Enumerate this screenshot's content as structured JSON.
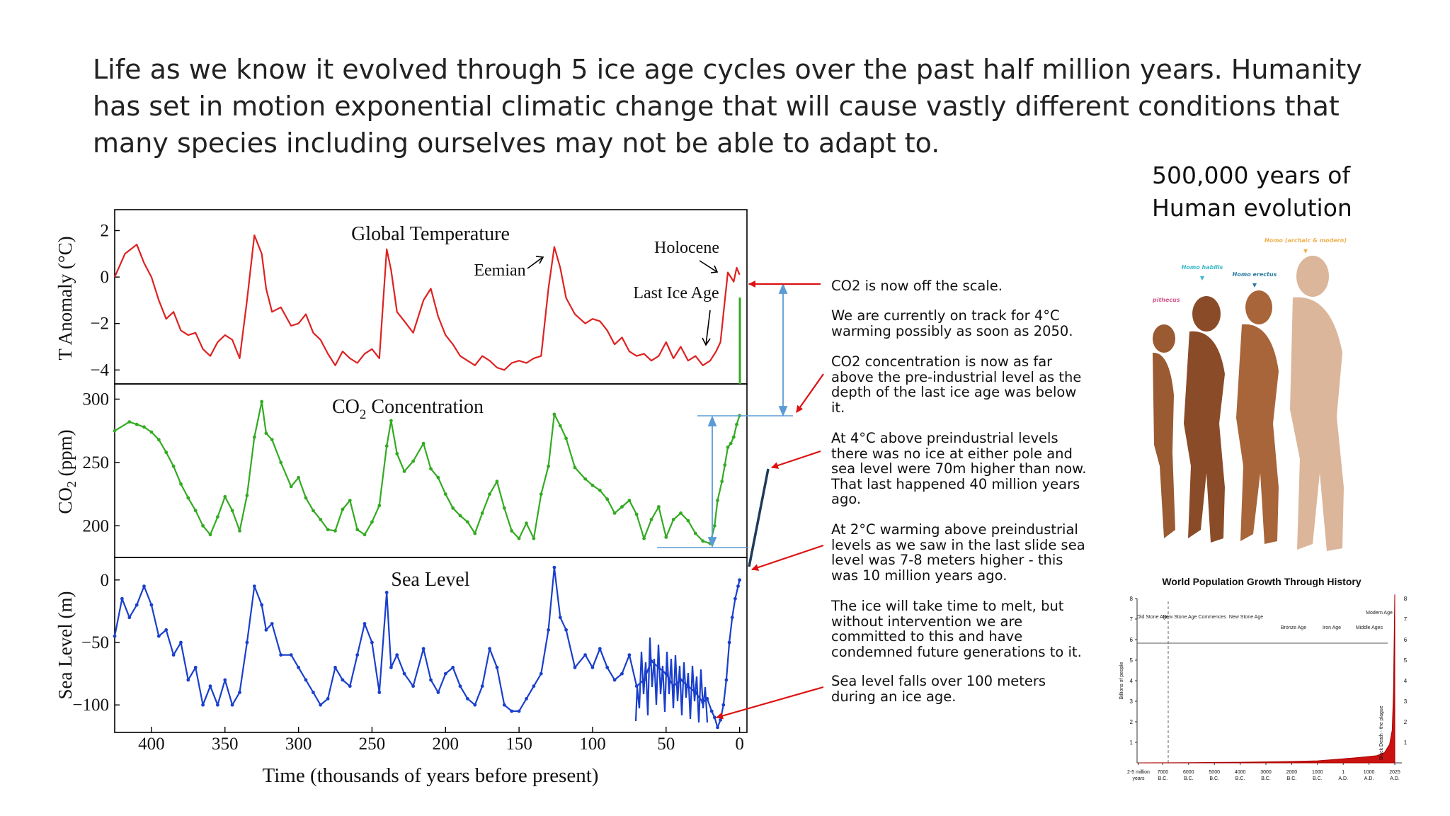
{
  "headline": [
    "Life as we know it evolved through 5 ice age cycles over the past half million years. Humanity",
    "has set in motion exponential climatic change that will cause vastly different conditions that",
    "many species including ourselves may not be able to adapt to."
  ],
  "evolution": {
    "title_lines": [
      "500,000 years of",
      "Human evolution"
    ],
    "labels": {
      "left": "pithecus",
      "habilis": "Homo habilis",
      "erectus": "Homo erectus",
      "sapiens": "Homo (archaic & modern)"
    }
  },
  "notes": [
    [
      "CO2 is now off the scale."
    ],
    [
      "We are currently on track for 4°C",
      "warming possibly as soon as 2050."
    ],
    [
      "CO2 concentration is now as far",
      "above the pre-industrial level as the",
      "depth of the last ice age was below",
      "it."
    ],
    [
      "At 4°C above preindustrial levels",
      "there was no ice at either pole and",
      "sea level were 70m higher than now.",
      "That last happened 40 million years",
      "ago."
    ],
    [
      "At 2°C warming above preindustrial",
      "levels as we saw in the last slide sea",
      "level was 7-8 meters higher - this",
      "was 10 million years ago."
    ],
    [
      "The ice will take time to melt, but",
      "without intervention we are",
      "committed to this and have",
      "condemned future generations to it."
    ],
    [
      "Sea level falls over 100 meters",
      "during an ice age."
    ]
  ],
  "colors": {
    "temperature": "#dd2222",
    "co2": "#33aa22",
    "sea_level": "#1a3fcc",
    "annotation_arrow": "#dd1111",
    "bracket": "#5b9bd5",
    "population": "#cc1111"
  },
  "chart_data": [
    {
      "type": "line",
      "xlabel": "Time (thousands of years before present)",
      "xlim": [
        425,
        -5
      ],
      "x_ticks": [
        "400",
        "350",
        "300",
        "250",
        "200",
        "150",
        "100",
        "50",
        "0"
      ],
      "panels": [
        {
          "title": "Global Temperature",
          "ylabel": "T Anomaly (°C)",
          "ylim": [
            -4.6,
            2.9
          ],
          "y_ticks": [
            2,
            0,
            -2,
            -4
          ],
          "y_tick_labels": [
            "2",
            "0",
            "−2",
            "−4"
          ],
          "series": {
            "x": [
              425,
              418,
              410,
              405,
              400,
              395,
              390,
              385,
              380,
              375,
              370,
              365,
              360,
              355,
              350,
              345,
              340,
              335,
              330,
              325,
              322,
              318,
              312,
              305,
              300,
              295,
              290,
              285,
              280,
              275,
              270,
              265,
              260,
              255,
              250,
              245,
              240,
              237,
              233,
              228,
              222,
              215,
              210,
              205,
              200,
              195,
              190,
              185,
              180,
              175,
              170,
              165,
              160,
              155,
              150,
              145,
              140,
              135,
              130,
              126,
              122,
              118,
              112,
              105,
              100,
              95,
              90,
              85,
              80,
              75,
              70,
              65,
              60,
              55,
              50,
              45,
              40,
              35,
              30,
              25,
              20,
              16,
              13,
              10,
              8,
              6,
              4,
              2,
              0
            ],
            "y": [
              0,
              1,
              1.4,
              0.6,
              0,
              -1,
              -1.8,
              -1.5,
              -2.3,
              -2.5,
              -2.4,
              -3.1,
              -3.4,
              -2.8,
              -2.5,
              -2.7,
              -3.5,
              -1,
              1.8,
              1,
              -0.5,
              -1.5,
              -1.3,
              -2.1,
              -2,
              -1.6,
              -2.4,
              -2.7,
              -3.3,
              -3.8,
              -3.2,
              -3.5,
              -3.7,
              -3.3,
              -3.1,
              -3.5,
              1.2,
              0.3,
              -1.5,
              -1.9,
              -2.4,
              -1,
              -0.5,
              -1.7,
              -2.5,
              -2.9,
              -3.4,
              -3.6,
              -3.8,
              -3.4,
              -3.6,
              -3.9,
              -4,
              -3.7,
              -3.6,
              -3.7,
              -3.5,
              -3.4,
              -0.5,
              1.3,
              0.4,
              -0.9,
              -1.6,
              -2,
              -1.8,
              -1.9,
              -2.3,
              -2.9,
              -2.6,
              -3.2,
              -3.4,
              -3.3,
              -3.6,
              -3.4,
              -2.8,
              -3.5,
              -3,
              -3.6,
              -3.4,
              -3.8,
              -3.6,
              -3.2,
              -2.8,
              -1,
              0.2,
              0,
              -0.2,
              0.4,
              0.1
            ]
          }
        },
        {
          "title": "CO2 Concentration",
          "ylabel": "CO2 (ppm)",
          "ylim": [
            175,
            312
          ],
          "y_ticks": [
            300,
            250,
            200
          ],
          "y_tick_labels": [
            "300",
            "250",
            "200"
          ],
          "series": {
            "x": [
              425,
              415,
              410,
              405,
              400,
              395,
              390,
              385,
              380,
              375,
              370,
              365,
              360,
              355,
              350,
              345,
              340,
              335,
              330,
              325,
              322,
              318,
              312,
              305,
              300,
              295,
              290,
              285,
              280,
              275,
              270,
              265,
              260,
              255,
              250,
              245,
              240,
              237,
              233,
              228,
              222,
              215,
              210,
              205,
              200,
              195,
              190,
              185,
              180,
              175,
              170,
              165,
              160,
              155,
              150,
              145,
              140,
              135,
              130,
              126,
              122,
              118,
              112,
              105,
              100,
              95,
              90,
              85,
              80,
              75,
              70,
              65,
              60,
              55,
              50,
              45,
              40,
              35,
              30,
              25,
              20,
              17,
              15,
              12,
              10,
              8,
              6,
              4,
              2,
              0
            ],
            "y": [
              275,
              282,
              280,
              278,
              274,
              268,
              258,
              247,
              233,
              222,
              212,
              200,
              193,
              207,
              223,
              212,
              196,
              224,
              270,
              298,
              273,
              268,
              250,
              231,
              238,
              222,
              212,
              205,
              197,
              196,
              213,
              220,
              197,
              193,
              203,
              216,
              263,
              283,
              257,
              243,
              251,
              265,
              245,
              238,
              225,
              214,
              208,
              203,
              194,
              210,
              225,
              235,
              214,
              196,
              190,
              202,
              190,
              225,
              247,
              288,
              279,
              269,
              246,
              237,
              232,
              228,
              221,
              210,
              215,
              220,
              209,
              190,
              205,
              215,
              191,
              205,
              210,
              204,
              194,
              188,
              186,
              200,
              220,
              235,
              248,
              262,
              265,
              270,
              280,
              287
            ]
          }
        },
        {
          "title": "Sea Level",
          "ylabel": "Sea Level (m)",
          "ylim": [
            -122,
            18
          ],
          "y_ticks": [
            0,
            -50,
            -100
          ],
          "y_tick_labels": [
            "0",
            "−50",
            "−100"
          ],
          "series": {
            "x": [
              425,
              420,
              415,
              410,
              405,
              400,
              395,
              390,
              385,
              380,
              375,
              370,
              365,
              360,
              355,
              350,
              345,
              340,
              335,
              330,
              325,
              322,
              318,
              312,
              305,
              300,
              295,
              290,
              285,
              280,
              275,
              270,
              265,
              260,
              255,
              250,
              245,
              240,
              237,
              233,
              228,
              222,
              215,
              210,
              205,
              200,
              195,
              190,
              185,
              180,
              175,
              170,
              165,
              160,
              155,
              150,
              145,
              140,
              135,
              130,
              126,
              122,
              118,
              112,
              105,
              100,
              95,
              90,
              85,
              80,
              75,
              70,
              65,
              60,
              55,
              50,
              45,
              40,
              35,
              30,
              25,
              22,
              19,
              17,
              15,
              13,
              11,
              9,
              7,
              5,
              3,
              1,
              0
            ],
            "y": [
              -45,
              -15,
              -30,
              -20,
              -5,
              -20,
              -45,
              -40,
              -60,
              -50,
              -80,
              -70,
              -100,
              -85,
              -100,
              -80,
              -100,
              -90,
              -50,
              -5,
              -20,
              -40,
              -35,
              -60,
              -60,
              -70,
              -80,
              -90,
              -100,
              -95,
              -70,
              -80,
              -85,
              -60,
              -35,
              -50,
              -90,
              -10,
              -70,
              -60,
              -75,
              -85,
              -55,
              -80,
              -90,
              -75,
              -70,
              -85,
              -95,
              -100,
              -85,
              -55,
              -70,
              -100,
              -105,
              -105,
              -95,
              -85,
              -75,
              -40,
              10,
              -30,
              -40,
              -70,
              -60,
              -70,
              -55,
              -70,
              -80,
              -75,
              -60,
              -85,
              -80,
              -65,
              -70,
              -75,
              -85,
              -80,
              -85,
              -90,
              -98,
              -95,
              -105,
              -110,
              -118,
              -112,
              -100,
              -80,
              -50,
              -30,
              -15,
              -5,
              0
            ]
          }
        }
      ]
    },
    {
      "type": "area",
      "title": "World Population Growth Through History",
      "ylabel": "Billions of people",
      "ylim": [
        0,
        8
      ],
      "y_ticks": [
        "1",
        "2",
        "3",
        "4",
        "5",
        "6",
        "7",
        "8"
      ],
      "eras": [
        "Old Stone Age",
        "New Stone Age Commences",
        "New Stone Age",
        "Bronze Age",
        "Iron Age",
        "Middle Ages",
        "Modern Age"
      ],
      "annotation": "Black Death - the plague",
      "x_ticks": [
        {
          "top": "2-5 million",
          "bottom": "years"
        },
        {
          "top": "7000",
          "bottom": "B.C."
        },
        {
          "top": "6000",
          "bottom": "B.C."
        },
        {
          "top": "5000",
          "bottom": "B.C."
        },
        {
          "top": "4000",
          "bottom": "B.C."
        },
        {
          "top": "3000",
          "bottom": "B.C."
        },
        {
          "top": "2000",
          "bottom": "B.C."
        },
        {
          "top": "1000",
          "bottom": "B.C."
        },
        {
          "top": "1",
          "bottom": "A.D."
        },
        {
          "top": "1000",
          "bottom": "A.D."
        },
        {
          "top": "2025",
          "bottom": "A.D."
        }
      ],
      "series": {
        "x_index": [
          0,
          1,
          2,
          3,
          4,
          5,
          6,
          7,
          8,
          8.5,
          9,
          9.3,
          9.6,
          9.8,
          9.9,
          9.95,
          10
        ],
        "y": [
          0,
          0.005,
          0.01,
          0.02,
          0.03,
          0.05,
          0.07,
          0.1,
          0.2,
          0.25,
          0.31,
          0.35,
          0.5,
          0.9,
          1.6,
          3.5,
          8.2
        ]
      }
    }
  ]
}
